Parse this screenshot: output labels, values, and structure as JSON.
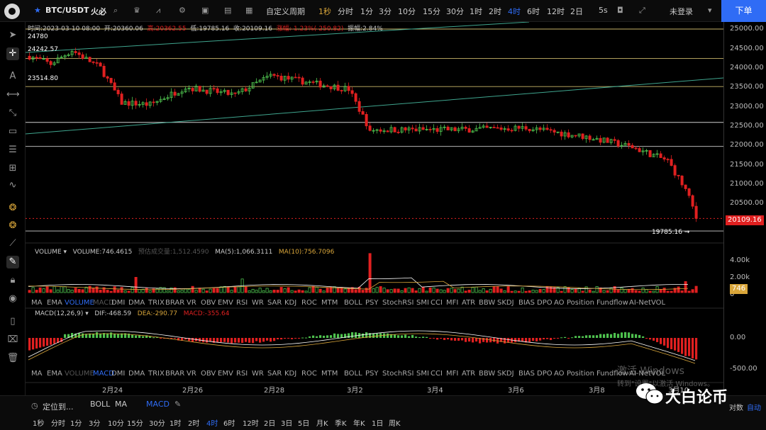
{
  "topbar": {
    "symbol": "BTC/USDT",
    "exchange": "火必",
    "custom_period": "自定义周期",
    "periods": [
      "1秒",
      "分时",
      "1分",
      "3分",
      "10分",
      "15分",
      "30分",
      "1时",
      "2时",
      "4时",
      "6时",
      "12时",
      "2日"
    ],
    "selected_period": "4时",
    "interval_right": "5s",
    "account": "未登录",
    "order_btn": "下单"
  },
  "info": {
    "time_label": "时间:2023-03-10 08:00",
    "open": "开:20360.06",
    "high": "高:20362.55",
    "low": "低:19785.16",
    "close": "收:20109.16",
    "change": "涨幅:-1.23%(-250.82)",
    "amplitude": "振幅:2.84%"
  },
  "price_labels": {
    "l1": "24780",
    "l2": "24242.57",
    "l3": "23514.80",
    "low_marker": "19785.16 →"
  },
  "price_axis": [
    "25000.00",
    "24500.00",
    "24000.00",
    "23500.00",
    "23000.00",
    "22500.00",
    "22000.00",
    "21500.00",
    "21000.00",
    "20500.00"
  ],
  "current_price": "20109.16",
  "volume": {
    "name": "VOLUME",
    "value": "VOLUME:746.4615",
    "est": "预估成交量:1,512.4590",
    "ma5": "MA(5):1,066.3111",
    "ma10": "MA(10):756.7096",
    "axis": [
      "4.00k",
      "2.00k",
      "0"
    ],
    "current": "746"
  },
  "indicator_tabs": [
    "MA",
    "EMA",
    "VOLUME",
    "MACD",
    "DMI",
    "DMA",
    "TRIX",
    "BRAR",
    "VR",
    "OBV",
    "EMV",
    "RSI",
    "WR",
    "SAR",
    "KDJ",
    "ROC",
    "MTM",
    "BOLL",
    "PSY",
    "StochRSI",
    "SMI",
    "CCI",
    "MFI",
    "ATR",
    "BBW",
    "SKDJ",
    "BIAS",
    "DPO",
    "AO",
    "Position",
    "Fundflow",
    "AI-NetVOL"
  ],
  "macd": {
    "name": "MACD(12,26,9)",
    "dif": "DIF:-468.59",
    "dea": "DEA:-290.77",
    "macd": "MACD:-355.64",
    "axis": [
      "0.00",
      "-500.00"
    ]
  },
  "dates": [
    "2月24",
    "2月26",
    "2月28",
    "3月2",
    "3月4",
    "3月6",
    "3月8",
    "3月10"
  ],
  "bottombar": {
    "locate": "定位到...",
    "boll": "BOLL",
    "ma": "MA",
    "macd": "MACD",
    "periods": [
      "1秒",
      "分时",
      "1分",
      "3分",
      "10分",
      "15分",
      "30分",
      "1时",
      "2时",
      "4时",
      "6时",
      "12时",
      "2日",
      "3日",
      "5日",
      "月K",
      "季K",
      "年K",
      "1日",
      "周K"
    ],
    "selected": "4时",
    "right1": "对数",
    "right2": "自动"
  },
  "watermark": {
    "line1": "激活 Windows",
    "line2": "转到\"设置\"以激活 Windows。"
  },
  "brand": "大白论币",
  "colors": {
    "up": "#4ec14e",
    "down": "#e02020",
    "accent": "#2f6cf5",
    "gold": "#d9a63a"
  }
}
